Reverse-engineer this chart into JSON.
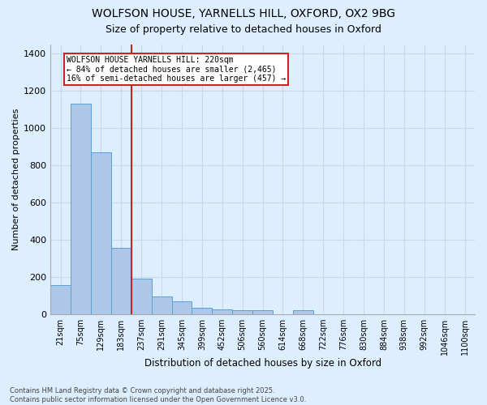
{
  "title_line1": "WOLFSON HOUSE, YARNELLS HILL, OXFORD, OX2 9BG",
  "title_line2": "Size of property relative to detached houses in Oxford",
  "xlabel": "Distribution of detached houses by size in Oxford",
  "ylabel": "Number of detached properties",
  "categories": [
    "21sqm",
    "75sqm",
    "129sqm",
    "183sqm",
    "237sqm",
    "291sqm",
    "345sqm",
    "399sqm",
    "452sqm",
    "506sqm",
    "560sqm",
    "614sqm",
    "668sqm",
    "722sqm",
    "776sqm",
    "830sqm",
    "884sqm",
    "938sqm",
    "992sqm",
    "1046sqm",
    "1100sqm"
  ],
  "values": [
    155,
    1130,
    870,
    355,
    190,
    95,
    70,
    35,
    25,
    20,
    20,
    0,
    20,
    0,
    0,
    0,
    0,
    0,
    0,
    0,
    0
  ],
  "bar_color": "#aec6e8",
  "bar_edge_color": "#5a9fd4",
  "grid_color": "#c8d8e8",
  "bg_color": "#ddeeff",
  "vline_color": "#cc2222",
  "annotation_text": "WOLFSON HOUSE YARNELLS HILL: 220sqm\n← 84% of detached houses are smaller (2,465)\n16% of semi-detached houses are larger (457) →",
  "annotation_box_color": "#cc2222",
  "footnote1": "Contains HM Land Registry data © Crown copyright and database right 2025.",
  "footnote2": "Contains public sector information licensed under the Open Government Licence v3.0.",
  "ylim": [
    0,
    1450
  ],
  "yticks": [
    0,
    200,
    400,
    600,
    800,
    1000,
    1200,
    1400
  ]
}
